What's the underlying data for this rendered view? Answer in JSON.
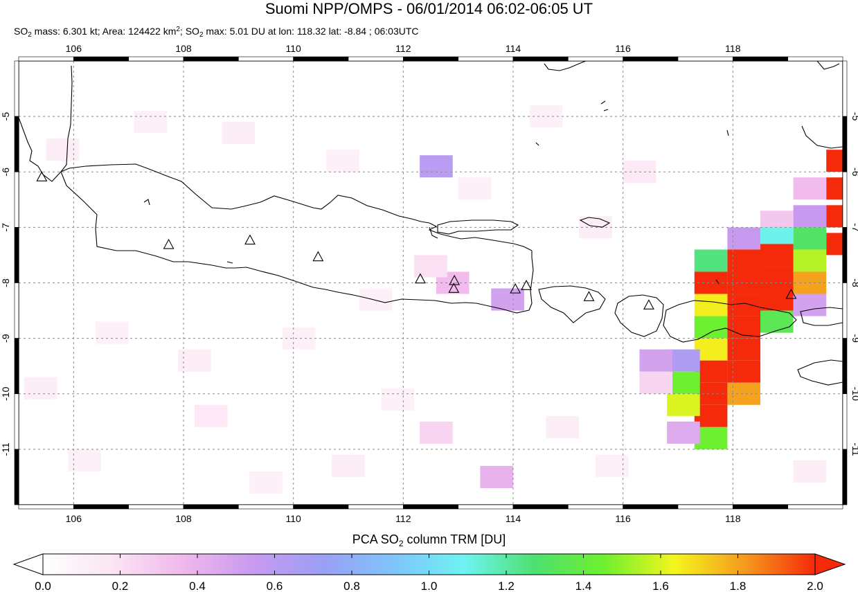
{
  "header": {
    "title": "Suomi NPP/OMPS - 06/01/2014 06:02-06:05 UT",
    "stats": {
      "p1": "SO",
      "p1sub": "2",
      "p2": " mass: 6.301 kt; Area: 124422 km",
      "p2sup": "2",
      "p3": "; SO",
      "p3sub": "2",
      "p4": " max: 5.01 DU at lon: 118.32 lat: -8.84 ; 06:03UTC"
    }
  },
  "map": {
    "lon_ticks": [
      "106",
      "108",
      "110",
      "112",
      "114",
      "116",
      "118"
    ],
    "lat_ticks": [
      "-5",
      "-6",
      "-7",
      "-8",
      "-9",
      "-10",
      "-11"
    ],
    "lon_range": [
      105.0,
      120.0
    ],
    "lat_range": [
      -12.0,
      -4.0
    ],
    "grid": true,
    "volcanoes": [
      {
        "lon": 105.42,
        "lat": -6.1
      },
      {
        "lon": 107.73,
        "lat": -7.32
      },
      {
        "lon": 109.21,
        "lat": -7.24
      },
      {
        "lon": 110.45,
        "lat": -7.54
      },
      {
        "lon": 112.31,
        "lat": -7.94
      },
      {
        "lon": 112.93,
        "lat": -7.97
      },
      {
        "lon": 112.92,
        "lat": -8.11
      },
      {
        "lon": 114.04,
        "lat": -8.12
      },
      {
        "lon": 114.24,
        "lat": -8.06
      },
      {
        "lon": 115.38,
        "lat": -8.26
      },
      {
        "lon": 116.47,
        "lat": -8.41
      },
      {
        "lon": 119.06,
        "lat": -8.22
      }
    ],
    "so2_pixels": [
      {
        "lon": 120.0,
        "lat": -5.8,
        "v": 2.0
      },
      {
        "lon": 120.0,
        "lat": -6.3,
        "v": 2.0
      },
      {
        "lon": 120.0,
        "lat": -6.8,
        "v": 2.0
      },
      {
        "lon": 120.0,
        "lat": -7.3,
        "v": 2.0
      },
      {
        "lon": 119.4,
        "lat": -6.3,
        "v": 0.35
      },
      {
        "lon": 119.4,
        "lat": -6.8,
        "v": 0.55
      },
      {
        "lon": 119.4,
        "lat": -7.2,
        "v": 1.3
      },
      {
        "lon": 119.4,
        "lat": -7.6,
        "v": 1.55
      },
      {
        "lon": 119.4,
        "lat": -8.0,
        "v": 1.8
      },
      {
        "lon": 119.4,
        "lat": -8.4,
        "v": 0.5
      },
      {
        "lon": 118.8,
        "lat": -6.9,
        "v": 0.3
      },
      {
        "lon": 118.8,
        "lat": -7.2,
        "v": 1.1
      },
      {
        "lon": 118.8,
        "lat": -7.5,
        "v": 2.0
      },
      {
        "lon": 118.8,
        "lat": -7.9,
        "v": 2.0
      },
      {
        "lon": 118.8,
        "lat": -8.3,
        "v": 2.0
      },
      {
        "lon": 118.8,
        "lat": -8.7,
        "v": 1.35
      },
      {
        "lon": 118.2,
        "lat": -7.2,
        "v": 0.55
      },
      {
        "lon": 118.2,
        "lat": -7.6,
        "v": 2.0
      },
      {
        "lon": 118.2,
        "lat": -8.0,
        "v": 2.0
      },
      {
        "lon": 118.2,
        "lat": -8.4,
        "v": 2.0
      },
      {
        "lon": 118.2,
        "lat": -8.8,
        "v": 2.0
      },
      {
        "lon": 118.2,
        "lat": -9.2,
        "v": 2.0
      },
      {
        "lon": 118.2,
        "lat": -9.6,
        "v": 2.0
      },
      {
        "lon": 118.2,
        "lat": -10.0,
        "v": 1.8
      },
      {
        "lon": 117.6,
        "lat": -7.6,
        "v": 1.25
      },
      {
        "lon": 117.6,
        "lat": -8.0,
        "v": 2.0
      },
      {
        "lon": 117.6,
        "lat": -8.4,
        "v": 1.65
      },
      {
        "lon": 117.6,
        "lat": -8.8,
        "v": 1.45
      },
      {
        "lon": 117.6,
        "lat": -9.2,
        "v": 1.65
      },
      {
        "lon": 117.6,
        "lat": -9.6,
        "v": 2.0
      },
      {
        "lon": 117.6,
        "lat": -10.0,
        "v": 2.0
      },
      {
        "lon": 117.6,
        "lat": -10.4,
        "v": 2.0
      },
      {
        "lon": 117.6,
        "lat": -10.8,
        "v": 1.45
      },
      {
        "lon": 117.1,
        "lat": -9.4,
        "v": 0.65
      },
      {
        "lon": 117.1,
        "lat": -9.8,
        "v": 1.45
      },
      {
        "lon": 117.1,
        "lat": -10.2,
        "v": 1.6
      },
      {
        "lon": 117.1,
        "lat": -10.7,
        "v": 0.45
      },
      {
        "lon": 116.6,
        "lat": -9.4,
        "v": 0.5
      },
      {
        "lon": 116.6,
        "lat": -9.8,
        "v": 0.25
      },
      {
        "lon": 112.6,
        "lat": -5.9,
        "v": 0.6
      },
      {
        "lon": 113.9,
        "lat": -8.3,
        "v": 0.5
      },
      {
        "lon": 112.9,
        "lat": -8.0,
        "v": 0.35
      },
      {
        "lon": 112.5,
        "lat": -7.7,
        "v": 0.2
      },
      {
        "lon": 113.7,
        "lat": -11.5,
        "v": 0.4
      },
      {
        "lon": 112.6,
        "lat": -10.7,
        "v": 0.25
      },
      {
        "lon": 108.5,
        "lat": -10.4,
        "v": 0.15
      },
      {
        "lon": 105.8,
        "lat": -5.6,
        "v": 0.12
      },
      {
        "lon": 107.4,
        "lat": -5.1,
        "v": 0.1
      },
      {
        "lon": 109.0,
        "lat": -5.3,
        "v": 0.12
      },
      {
        "lon": 110.9,
        "lat": -5.8,
        "v": 0.1
      },
      {
        "lon": 113.3,
        "lat": -6.3,
        "v": 0.1
      },
      {
        "lon": 114.6,
        "lat": -5.0,
        "v": 0.1
      },
      {
        "lon": 115.5,
        "lat": -7.0,
        "v": 0.12
      },
      {
        "lon": 116.3,
        "lat": -6.0,
        "v": 0.15
      },
      {
        "lon": 106.7,
        "lat": -8.9,
        "v": 0.1
      },
      {
        "lon": 108.2,
        "lat": -9.4,
        "v": 0.12
      },
      {
        "lon": 110.1,
        "lat": -9.0,
        "v": 0.1
      },
      {
        "lon": 111.5,
        "lat": -8.3,
        "v": 0.1
      },
      {
        "lon": 111.9,
        "lat": -10.1,
        "v": 0.1
      },
      {
        "lon": 114.9,
        "lat": -10.6,
        "v": 0.12
      },
      {
        "lon": 115.8,
        "lat": -11.3,
        "v": 0.1
      },
      {
        "lon": 119.4,
        "lat": -11.4,
        "v": 0.12
      },
      {
        "lon": 106.2,
        "lat": -11.2,
        "v": 0.1
      },
      {
        "lon": 109.5,
        "lat": -11.6,
        "v": 0.1
      },
      {
        "lon": 111.0,
        "lat": -11.3,
        "v": 0.12
      },
      {
        "lon": 105.4,
        "lat": -9.9,
        "v": 0.12
      }
    ]
  },
  "colorbar": {
    "title_pre": "PCA SO",
    "title_sub": "2",
    "title_post": " column TRM [DU]",
    "ticks": [
      "0.0",
      "0.2",
      "0.4",
      "0.6",
      "0.8",
      "1.0",
      "1.2",
      "1.4",
      "1.6",
      "1.8",
      "2.0"
    ],
    "min": 0.0,
    "max": 2.0,
    "stops": [
      "#ffffff",
      "#fbe4f3",
      "#f0b8ec",
      "#c89af0",
      "#9aa0f5",
      "#7fc4fa",
      "#6ff3f3",
      "#4ee070",
      "#6ef02e",
      "#f5f51e",
      "#f59a1e",
      "#f52a0a"
    ]
  }
}
